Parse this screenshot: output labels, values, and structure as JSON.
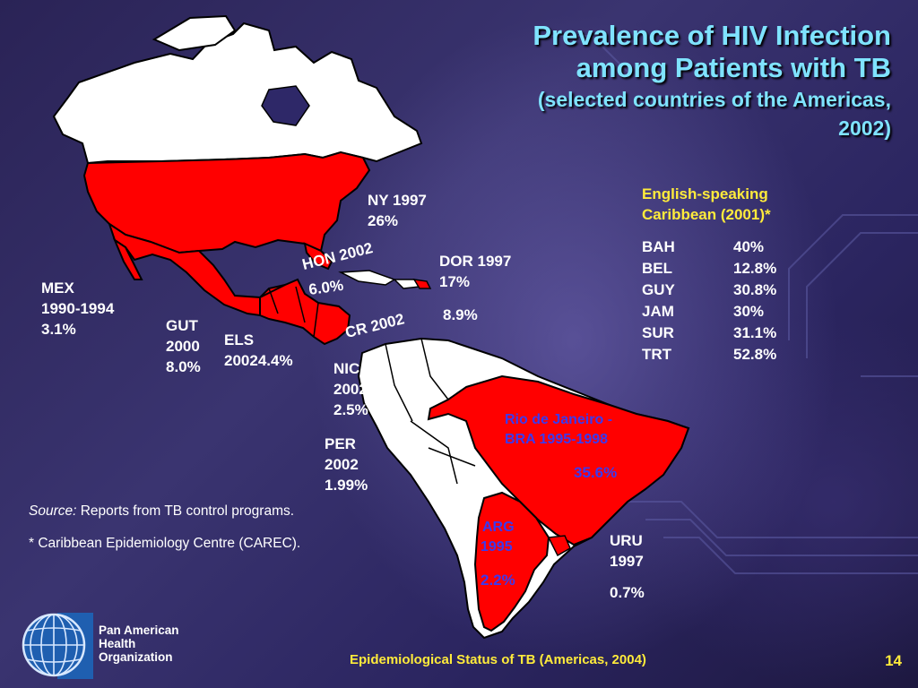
{
  "title": {
    "line1": "Prevalence of HIV Infection",
    "line2": "among Patients with TB",
    "line3": "(selected countries of the Americas,",
    "line4": "2002)"
  },
  "labels": {
    "ny": "NY 1997\n26%",
    "mex": "MEX\n1990-1994\n3.1%",
    "gut": "GUT\n2000\n8.0%",
    "els": "ELS\n20024.4%",
    "hon_year": "HON 2002",
    "hon_value": "6.0%",
    "dor": "DOR 1997\n17%",
    "dor_value": "8.9%",
    "cr": "CR 2002",
    "nic": "NIC\n2002\n2.5%",
    "per": "PER\n2002\n1.99%",
    "bra_line1": "Rio de Janeiro -",
    "bra_line2": "BRA 1995-1998",
    "bra_value": "35.6%",
    "arg_line1": "ARG",
    "arg_line2": "1995",
    "arg_value": "2.2%",
    "uru": "URU\n1997",
    "uru_value": "0.7%"
  },
  "caribbean": {
    "heading": "English-speaking\nCaribbean (2001)*",
    "rows": [
      {
        "country": "BAH",
        "value": "40%"
      },
      {
        "country": "BEL",
        "value": "12.8%"
      },
      {
        "country": "GUY",
        "value": "30.8%"
      },
      {
        "country": "JAM",
        "value": "30%"
      },
      {
        "country": "SUR",
        "value": "31.1%"
      },
      {
        "country": "TRT",
        "value": "52.8%"
      }
    ]
  },
  "source": {
    "prefix": "Source:",
    "text": " Reports from TB control programs.",
    "note": "* Caribbean Epidemiology Centre (CAREC)."
  },
  "logo": {
    "line1": "Pan American",
    "line2": "Health",
    "line3": "Organization"
  },
  "footer": {
    "text": "Epidemiological Status of TB (Americas, 2004)",
    "page": "14"
  },
  "colors": {
    "highlight": "#ff0000",
    "land": "#ffffff",
    "title": "#7fe3ff",
    "footer": "#ffeb3b",
    "blue_label": "#3a3af0"
  }
}
